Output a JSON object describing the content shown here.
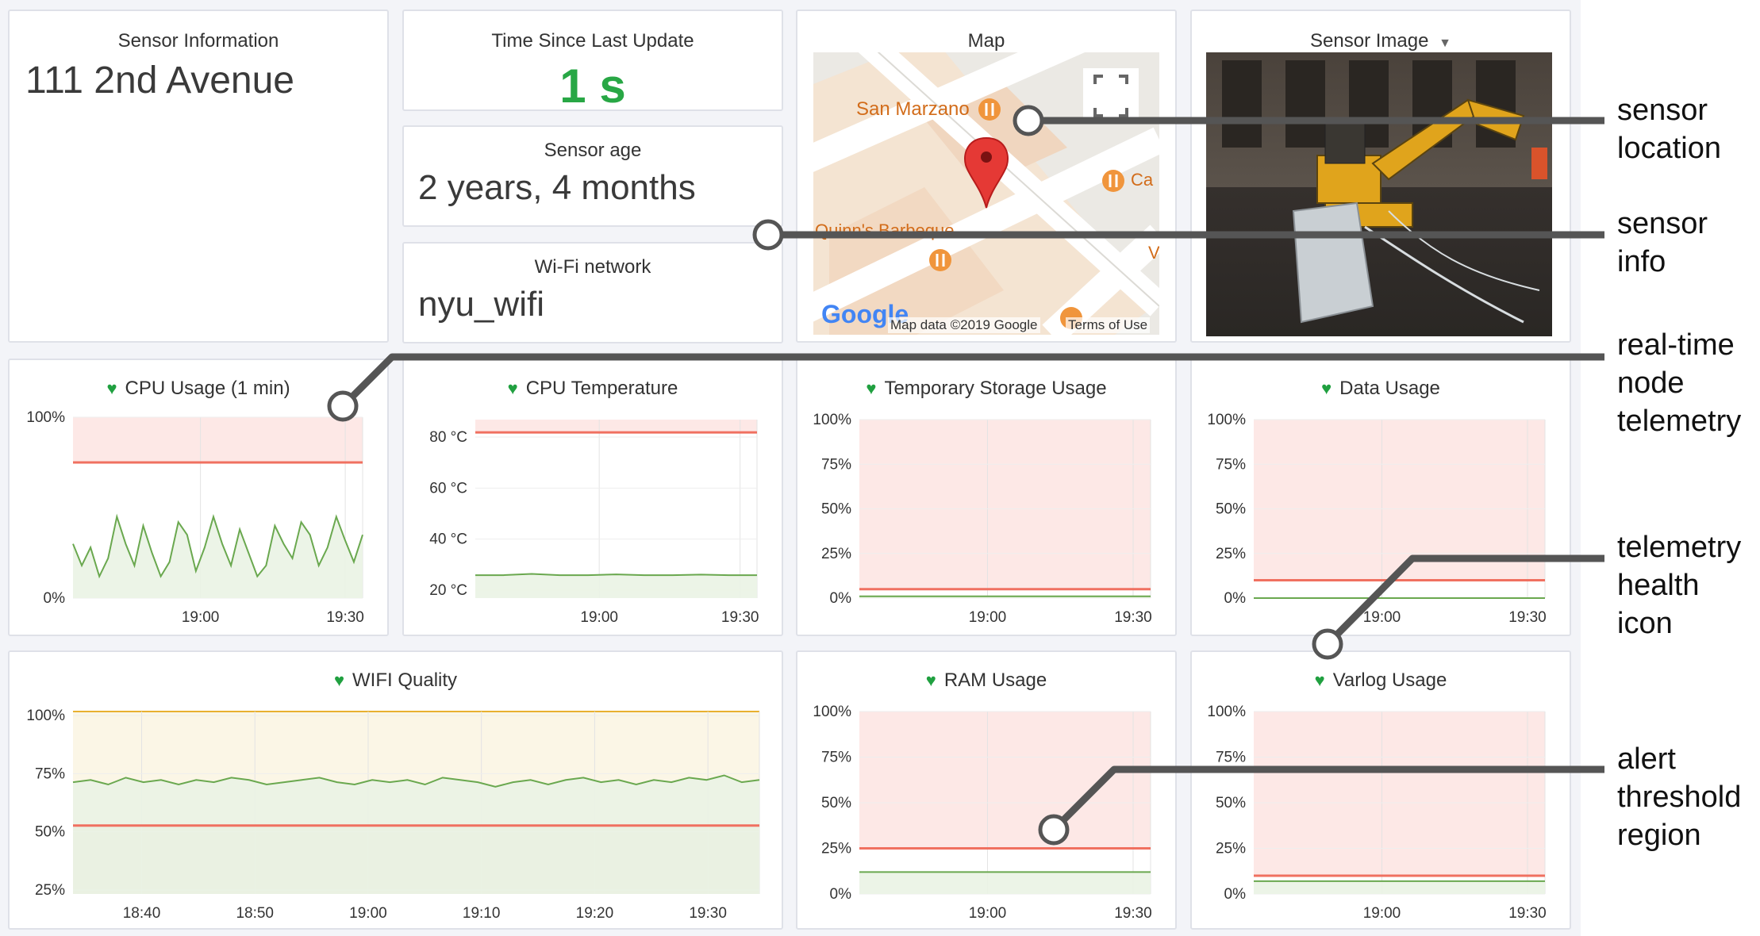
{
  "panels": {
    "sensor_info": {
      "title": "Sensor Information",
      "value": "111 2nd Avenue"
    },
    "time_since": {
      "title": "Time Since Last Update",
      "value": "1 s"
    },
    "sensor_age": {
      "title": "Sensor age",
      "value": "2 years, 4 months"
    },
    "wifi_network": {
      "title": "Wi-Fi network",
      "value": "nyu_wifi"
    },
    "map": {
      "title": "Map",
      "place1": "San Marzano",
      "place2": "Quinn's Barbeque",
      "place3": "Ca",
      "place4": "V",
      "logo": "Google",
      "map_data": "Map data ©2019 Google",
      "terms": "Terms of Use"
    },
    "sensor_image": {
      "title": "Sensor Image"
    }
  },
  "colors": {
    "health": "#20a040",
    "threshold": "#f07060",
    "alert_fill": "#fde8e6",
    "series": "#6aa84f",
    "warn_line": "#e8b030"
  },
  "icons": {
    "health": "heart-icon",
    "fullscreen": "fullscreen-icon",
    "pin": "map-pin-icon",
    "dropdown": "caret-down-icon"
  },
  "annotations": {
    "sensor_location": [
      "sensor",
      "location"
    ],
    "sensor_info": [
      "sensor",
      "info"
    ],
    "telemetry": [
      "real-time",
      "node",
      "telemetry"
    ],
    "health_icon": [
      "telemetry",
      "health",
      "icon"
    ],
    "alert_region": [
      "alert",
      "threshold",
      "region"
    ]
  },
  "chart_data": [
    {
      "type": "line",
      "title": "CPU Usage (1 min)",
      "y_ticks": [
        "100%",
        "0%"
      ],
      "x_ticks": [
        "19:00",
        "19:30"
      ],
      "ylim": [
        0,
        100
      ],
      "threshold": 75,
      "alert_region": "above threshold",
      "series": [
        {
          "values": [
            30,
            18,
            28,
            12,
            22,
            45,
            30,
            18,
            40,
            25,
            12,
            20,
            42,
            35,
            15,
            28,
            45,
            30,
            18,
            38,
            25,
            12,
            18,
            40,
            30,
            22,
            42,
            35,
            18,
            28,
            45,
            32,
            20,
            35
          ]
        }
      ]
    },
    {
      "type": "line",
      "title": "CPU Temperature",
      "y_ticks": [
        "80 °C",
        "60 °C",
        "40 °C",
        "20 °C"
      ],
      "x_ticks": [
        "19:00",
        "19:30"
      ],
      "ylim": [
        15,
        85
      ],
      "threshold": 80,
      "alert_region": "above threshold",
      "series": [
        {
          "values": [
            24,
            24,
            24.5,
            24,
            24,
            24.3,
            24,
            24,
            24.2,
            24,
            24
          ]
        }
      ]
    },
    {
      "type": "line",
      "title": "Temporary Storage Usage",
      "y_ticks": [
        "100%",
        "75%",
        "50%",
        "25%",
        "0%"
      ],
      "x_ticks": [
        "19:00",
        "19:30"
      ],
      "ylim": [
        0,
        100
      ],
      "threshold": 5,
      "alert_region": "above threshold",
      "series": [
        {
          "values": [
            1,
            1,
            1,
            1,
            1,
            1,
            1,
            1,
            1,
            1
          ]
        }
      ]
    },
    {
      "type": "line",
      "title": "Data Usage",
      "y_ticks": [
        "100%",
        "75%",
        "50%",
        "25%",
        "0%"
      ],
      "x_ticks": [
        "19:00",
        "19:30"
      ],
      "ylim": [
        0,
        100
      ],
      "threshold": 10,
      "alert_region": "above threshold",
      "series": [
        {
          "values": [
            0,
            0,
            0,
            0,
            0,
            0,
            0,
            0,
            0,
            0
          ]
        }
      ]
    },
    {
      "type": "line",
      "title": "WIFI Quality",
      "y_ticks": [
        "100%",
        "75%",
        "50%",
        "25%"
      ],
      "x_ticks": [
        "18:40",
        "18:50",
        "19:00",
        "19:10",
        "19:20",
        "19:30"
      ],
      "ylim": [
        20,
        100
      ],
      "threshold": 50,
      "warn_threshold": 100,
      "alert_region": "below threshold",
      "series": [
        {
          "values": [
            69,
            70,
            68,
            71,
            69,
            70,
            68,
            70,
            69,
            71,
            70,
            68,
            69,
            70,
            71,
            69,
            68,
            70,
            69,
            70,
            68,
            71,
            70,
            69,
            67,
            69,
            70,
            68,
            70,
            71,
            69,
            70,
            68,
            70,
            69,
            71,
            70,
            72,
            69,
            70
          ]
        }
      ]
    },
    {
      "type": "line",
      "title": "RAM Usage",
      "y_ticks": [
        "100%",
        "75%",
        "50%",
        "25%",
        "0%"
      ],
      "x_ticks": [
        "19:00",
        "19:30"
      ],
      "ylim": [
        0,
        100
      ],
      "threshold": 25,
      "alert_region": "above threshold",
      "series": [
        {
          "values": [
            12,
            12,
            12,
            12,
            12,
            12,
            12,
            12,
            12,
            12
          ]
        }
      ]
    },
    {
      "type": "line",
      "title": "Varlog Usage",
      "y_ticks": [
        "100%",
        "75%",
        "50%",
        "25%",
        "0%"
      ],
      "x_ticks": [
        "19:00",
        "19:30"
      ],
      "ylim": [
        0,
        100
      ],
      "threshold": 10,
      "alert_region": "above threshold",
      "series": [
        {
          "values": [
            7,
            7,
            7,
            7,
            7,
            7,
            7,
            7,
            7,
            7
          ]
        }
      ]
    }
  ]
}
